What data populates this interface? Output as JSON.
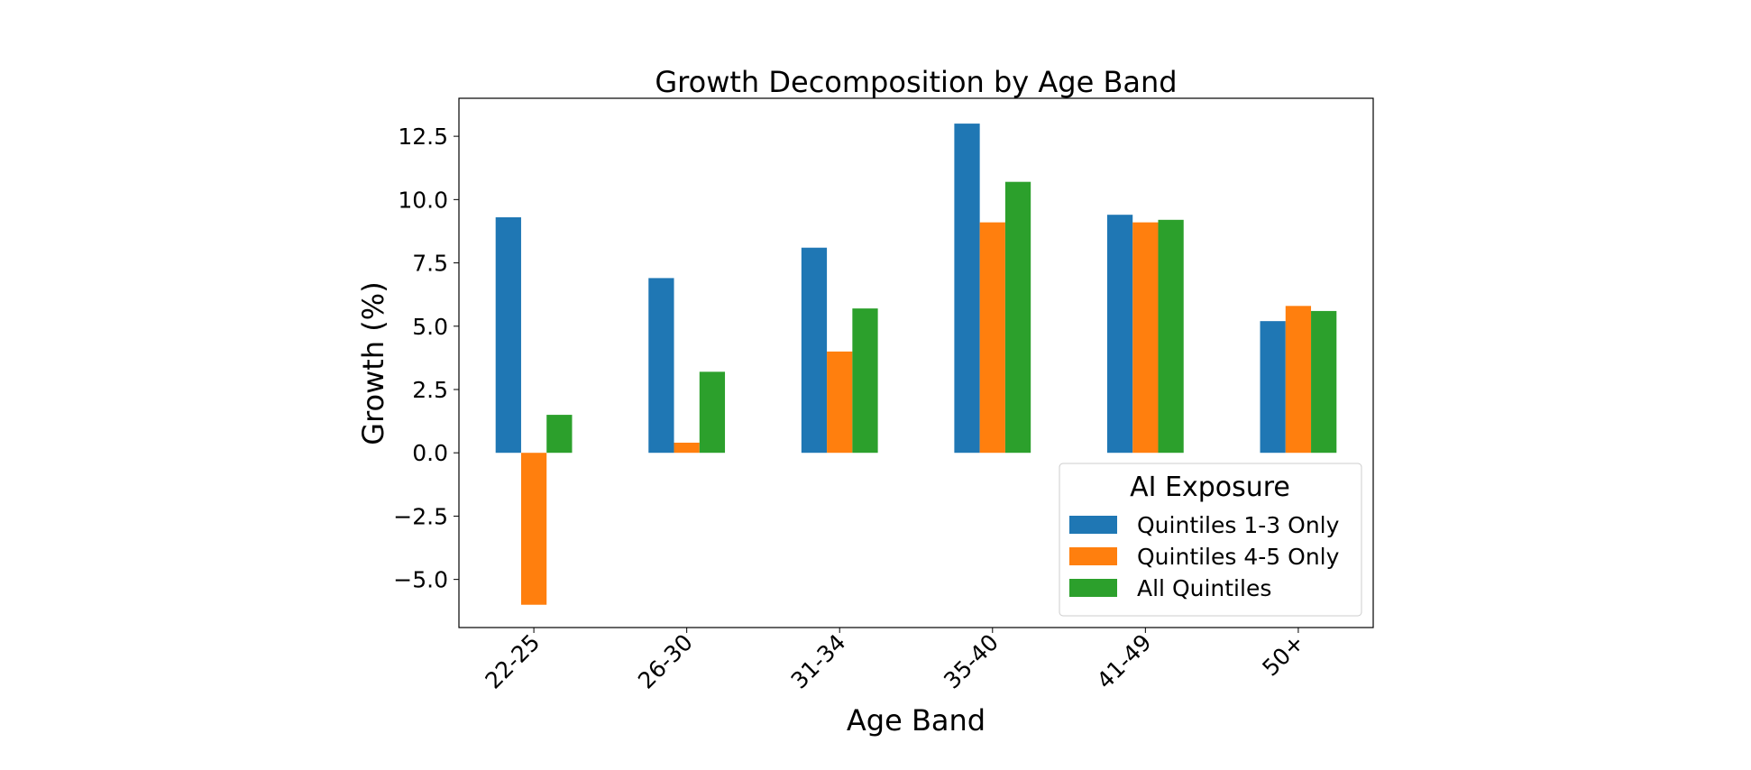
{
  "chart_data": {
    "type": "bar",
    "title": "Growth Decomposition by Age Band",
    "xlabel": "Age Band",
    "ylabel": "Growth (%)",
    "categories": [
      "22-25",
      "26-30",
      "31-34",
      "35-40",
      "41-49",
      "50+"
    ],
    "ylim": [
      -6.9,
      14.0
    ],
    "yticks": [
      -5.0,
      -2.5,
      0.0,
      2.5,
      5.0,
      7.5,
      10.0,
      12.5
    ],
    "ytick_labels": [
      "−5.0",
      "−2.5",
      "0.0",
      "2.5",
      "5.0",
      "7.5",
      "10.0",
      "12.5"
    ],
    "grid": false,
    "legend": {
      "title": "AI Exposure",
      "placement": "lower-right"
    },
    "series": [
      {
        "name": "Quintiles 1-3 Only",
        "color": "#1f77b4",
        "values": [
          9.3,
          6.9,
          8.1,
          13.0,
          9.4,
          5.2
        ]
      },
      {
        "name": "Quintiles 4-5 Only",
        "color": "#ff7f0e",
        "values": [
          -6.0,
          0.4,
          4.0,
          9.1,
          9.1,
          5.8
        ]
      },
      {
        "name": "All Quintiles",
        "color": "#2ca02c",
        "values": [
          1.5,
          3.2,
          5.7,
          10.7,
          9.2,
          5.6
        ]
      }
    ]
  }
}
